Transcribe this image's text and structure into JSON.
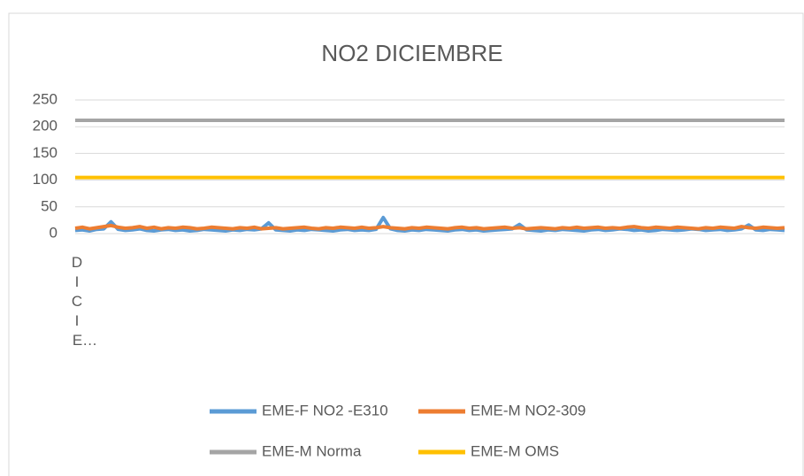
{
  "chart_data": {
    "type": "line",
    "title": "NO2 DICIEMBRE",
    "categories": [
      "DICIE…",
      null,
      null,
      null,
      null,
      null,
      null,
      null,
      null,
      null,
      null,
      null,
      null,
      null,
      null,
      null,
      null,
      null,
      null,
      null,
      null,
      null,
      null,
      null,
      null,
      null,
      null,
      null,
      null,
      null,
      null,
      null,
      null,
      null,
      null,
      null,
      null,
      null,
      null,
      null,
      null,
      null,
      null,
      null,
      null,
      null,
      null,
      null,
      null,
      null,
      null,
      null,
      null,
      null,
      null,
      null,
      null,
      null,
      null,
      null,
      null,
      null,
      null,
      null,
      null,
      null,
      null,
      null,
      null,
      null,
      null,
      null,
      null,
      null,
      null,
      null,
      null,
      null,
      null,
      null,
      null,
      null,
      null,
      null,
      null,
      null,
      null,
      null,
      null,
      null,
      null,
      null,
      null,
      null,
      null,
      null,
      null,
      null,
      null,
      null
    ],
    "ylim": [
      0,
      250
    ],
    "yticks": [
      0,
      50,
      100,
      150,
      200,
      250
    ],
    "grid": true,
    "series": [
      {
        "name": "EME-F NO2 -E310",
        "color": "#5b9bd5",
        "values": [
          6,
          7,
          5,
          8,
          9,
          22,
          8,
          6,
          7,
          9,
          6,
          5,
          7,
          8,
          6,
          7,
          5,
          6,
          8,
          7,
          6,
          5,
          7,
          6,
          8,
          7,
          9,
          20,
          7,
          6,
          5,
          7,
          6,
          8,
          7,
          6,
          5,
          7,
          8,
          6,
          7,
          6,
          8,
          30,
          9,
          6,
          5,
          7,
          6,
          8,
          7,
          6,
          5,
          7,
          8,
          6,
          7,
          5,
          6,
          7,
          8,
          9,
          17,
          7,
          6,
          5,
          7,
          6,
          8,
          7,
          6,
          5,
          7,
          8,
          6,
          7,
          9,
          8,
          6,
          7,
          5,
          6,
          8,
          7,
          6,
          7,
          9,
          8,
          6,
          7,
          8,
          6,
          7,
          9,
          16,
          7,
          6,
          8,
          7,
          6
        ]
      },
      {
        "name": "EME-M NO2-309",
        "color": "#ed7d31",
        "values": [
          10,
          12,
          9,
          11,
          13,
          15,
          12,
          10,
          11,
          13,
          10,
          12,
          9,
          11,
          10,
          12,
          11,
          9,
          10,
          12,
          11,
          10,
          9,
          11,
          10,
          12,
          9,
          10,
          11,
          9,
          10,
          11,
          12,
          10,
          9,
          11,
          10,
          12,
          11,
          10,
          12,
          10,
          11,
          13,
          11,
          10,
          9,
          11,
          10,
          12,
          11,
          10,
          9,
          11,
          12,
          10,
          11,
          9,
          10,
          11,
          12,
          10,
          11,
          9,
          10,
          11,
          10,
          9,
          11,
          10,
          12,
          10,
          11,
          12,
          10,
          11,
          10,
          12,
          13,
          11,
          10,
          12,
          11,
          10,
          12,
          11,
          10,
          9,
          11,
          10,
          12,
          11,
          10,
          13,
          11,
          10,
          12,
          11,
          10,
          11
        ]
      },
      {
        "name": "EME-M Norma",
        "color": "#a5a5a5",
        "values": [
          212,
          212,
          212,
          212,
          212,
          212,
          212,
          212,
          212,
          212,
          212,
          212,
          212,
          212,
          212,
          212,
          212,
          212,
          212,
          212,
          212,
          212,
          212,
          212,
          212,
          212,
          212,
          212,
          212,
          212,
          212,
          212,
          212,
          212,
          212,
          212,
          212,
          212,
          212,
          212,
          212,
          212,
          212,
          212,
          212,
          212,
          212,
          212,
          212,
          212,
          212,
          212,
          212,
          212,
          212,
          212,
          212,
          212,
          212,
          212,
          212,
          212,
          212,
          212,
          212,
          212,
          212,
          212,
          212,
          212,
          212,
          212,
          212,
          212,
          212,
          212,
          212,
          212,
          212,
          212,
          212,
          212,
          212,
          212,
          212,
          212,
          212,
          212,
          212,
          212,
          212,
          212,
          212,
          212,
          212,
          212,
          212,
          212,
          212,
          212
        ]
      },
      {
        "name": "EME-M OMS",
        "color": "#ffc000",
        "values": [
          105,
          105,
          105,
          105,
          105,
          105,
          105,
          105,
          105,
          105,
          105,
          105,
          105,
          105,
          105,
          105,
          105,
          105,
          105,
          105,
          105,
          105,
          105,
          105,
          105,
          105,
          105,
          105,
          105,
          105,
          105,
          105,
          105,
          105,
          105,
          105,
          105,
          105,
          105,
          105,
          105,
          105,
          105,
          105,
          105,
          105,
          105,
          105,
          105,
          105,
          105,
          105,
          105,
          105,
          105,
          105,
          105,
          105,
          105,
          105,
          105,
          105,
          105,
          105,
          105,
          105,
          105,
          105,
          105,
          105,
          105,
          105,
          105,
          105,
          105,
          105,
          105,
          105,
          105,
          105,
          105,
          105,
          105,
          105,
          105,
          105,
          105,
          105,
          105,
          105,
          105,
          105,
          105,
          105,
          105,
          105,
          105,
          105,
          105,
          105
        ]
      }
    ]
  }
}
